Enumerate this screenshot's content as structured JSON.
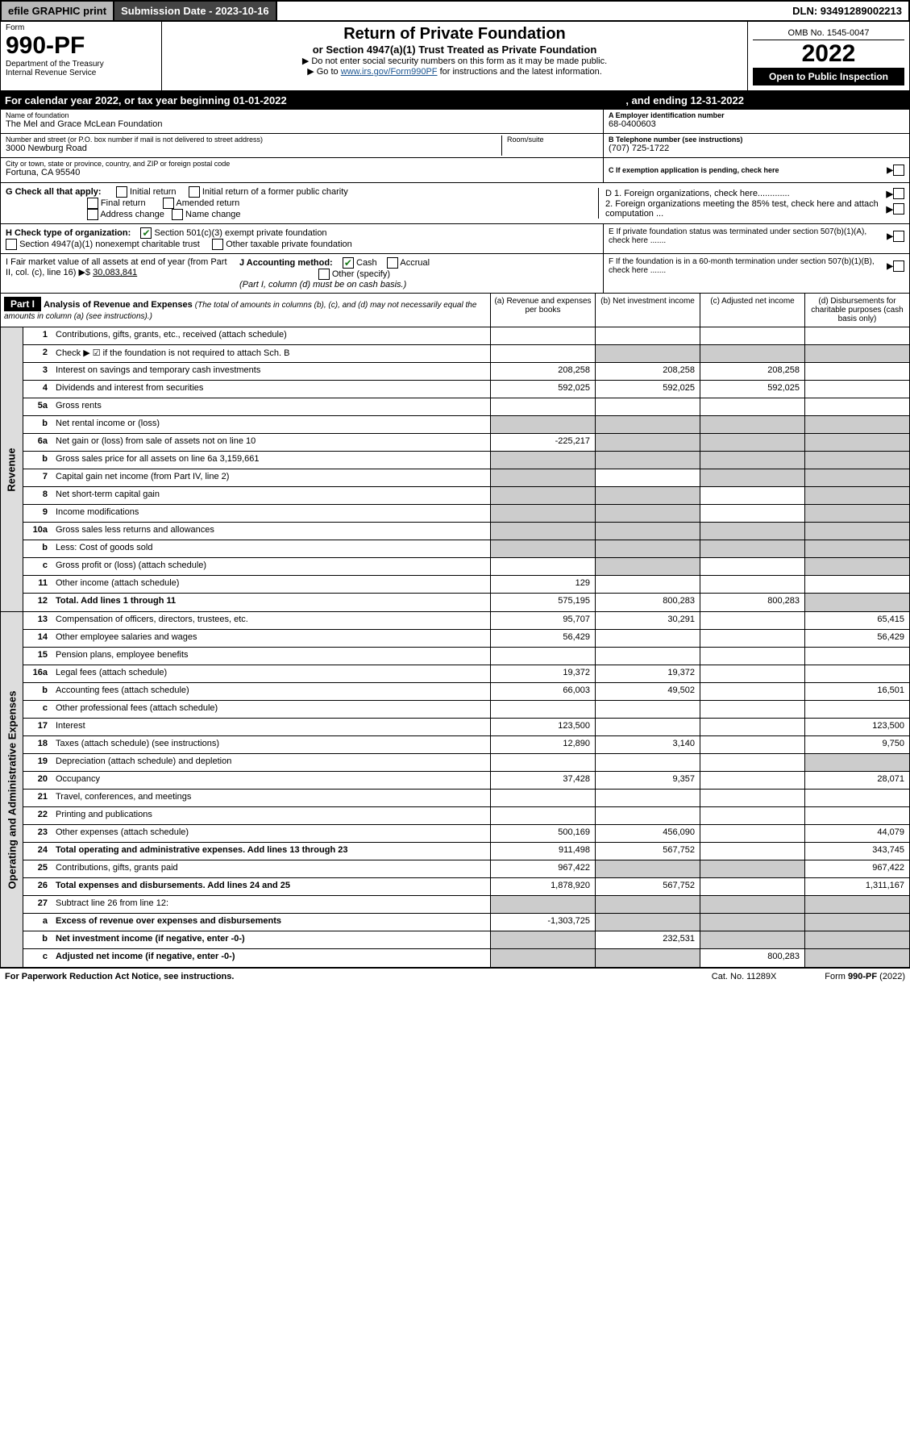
{
  "topbar": {
    "efile": "efile GRAPHIC print",
    "submission": "Submission Date - 2023-10-16",
    "dln": "DLN: 93491289002213"
  },
  "header": {
    "form_label": "Form",
    "form_number": "990-PF",
    "dept1": "Department of the Treasury",
    "dept2": "Internal Revenue Service",
    "title": "Return of Private Foundation",
    "subtitle": "or Section 4947(a)(1) Trust Treated as Private Foundation",
    "instr1": "▶ Do not enter social security numbers on this form as it may be made public.",
    "instr2_pre": "▶ Go to ",
    "instr2_link": "www.irs.gov/Form990PF",
    "instr2_post": " for instructions and the latest information.",
    "omb": "OMB No. 1545-0047",
    "year": "2022",
    "open": "Open to Public Inspection"
  },
  "cal_year": {
    "text": "For calendar year 2022, or tax year beginning 01-01-2022",
    "ending": ", and ending 12-31-2022"
  },
  "info": {
    "name_label": "Name of foundation",
    "name": "The Mel and Grace McLean Foundation",
    "addr_label": "Number and street (or P.O. box number if mail is not delivered to street address)",
    "addr": "3000 Newburg Road",
    "room_label": "Room/suite",
    "city_label": "City or town, state or province, country, and ZIP or foreign postal code",
    "city": "Fortuna, CA  95540",
    "a_label": "A Employer identification number",
    "a_val": "68-0400603",
    "b_label": "B Telephone number (see instructions)",
    "b_val": "(707) 725-1722",
    "c_label": "C If exemption application is pending, check here",
    "d1": "D 1. Foreign organizations, check here.............",
    "d2": "2. Foreign organizations meeting the 85% test, check here and attach computation ...",
    "e": "E  If private foundation status was terminated under section 507(b)(1)(A), check here .......",
    "f": "F  If the foundation is in a 60-month termination under section 507(b)(1)(B), check here ......."
  },
  "g": {
    "label": "G Check all that apply:",
    "o1": "Initial return",
    "o2": "Initial return of a former public charity",
    "o3": "Final return",
    "o4": "Amended return",
    "o5": "Address change",
    "o6": "Name change"
  },
  "h": {
    "label": "H Check type of organization:",
    "o1": "Section 501(c)(3) exempt private foundation",
    "o2": "Section 4947(a)(1) nonexempt charitable trust",
    "o3": "Other taxable private foundation"
  },
  "i": {
    "label": "I Fair market value of all assets at end of year (from Part II, col. (c), line 16) ▶$",
    "val": "30,083,841"
  },
  "j": {
    "label": "J Accounting method:",
    "o1": "Cash",
    "o2": "Accrual",
    "o3": "Other (specify)",
    "note": "(Part I, column (d) must be on cash basis.)"
  },
  "part1": {
    "badge": "Part I",
    "title": "Analysis of Revenue and Expenses",
    "desc": "(The total of amounts in columns (b), (c), and (d) may not necessarily equal the amounts in column (a) (see instructions).)",
    "col_a": "(a)   Revenue and expenses per books",
    "col_b": "(b)   Net investment income",
    "col_c": "(c)   Adjusted net income",
    "col_d": "(d)   Disbursements for charitable purposes (cash basis only)"
  },
  "side_labels": {
    "rev": "Revenue",
    "exp": "Operating and Administrative Expenses"
  },
  "rows": [
    {
      "n": "1",
      "d": "Contributions, gifts, grants, etc., received (attach schedule)",
      "a": "",
      "b": "",
      "c": "",
      "dd": ""
    },
    {
      "n": "2",
      "d": "Check ▶ ☑ if the foundation is not required to attach Sch. B",
      "a": "",
      "b": "",
      "c": "",
      "dd": "",
      "shade_bcd": true
    },
    {
      "n": "3",
      "d": "Interest on savings and temporary cash investments",
      "a": "208,258",
      "b": "208,258",
      "c": "208,258",
      "dd": ""
    },
    {
      "n": "4",
      "d": "Dividends and interest from securities",
      "a": "592,025",
      "b": "592,025",
      "c": "592,025",
      "dd": ""
    },
    {
      "n": "5a",
      "d": "Gross rents",
      "a": "",
      "b": "",
      "c": "",
      "dd": ""
    },
    {
      "n": "b",
      "d": "Net rental income or (loss)",
      "a": "",
      "b": "",
      "c": "",
      "dd": "",
      "shade_all": true
    },
    {
      "n": "6a",
      "d": "Net gain or (loss) from sale of assets not on line 10",
      "a": "-225,217",
      "b": "",
      "c": "",
      "dd": "",
      "shade_bcd": true
    },
    {
      "n": "b",
      "d": "Gross sales price for all assets on line 6a          3,159,661",
      "a": "",
      "b": "",
      "c": "",
      "dd": "",
      "shade_all": true
    },
    {
      "n": "7",
      "d": "Capital gain net income (from Part IV, line 2)",
      "a": "",
      "b": "",
      "c": "",
      "dd": "",
      "shade_a": true,
      "shade_cd": true
    },
    {
      "n": "8",
      "d": "Net short-term capital gain",
      "a": "",
      "b": "",
      "c": "",
      "dd": "",
      "shade_ab": true,
      "shade_d": true
    },
    {
      "n": "9",
      "d": "Income modifications",
      "a": "",
      "b": "",
      "c": "",
      "dd": "",
      "shade_ab": true,
      "shade_d": true
    },
    {
      "n": "10a",
      "d": "Gross sales less returns and allowances",
      "a": "",
      "b": "",
      "c": "",
      "dd": "",
      "shade_all": true
    },
    {
      "n": "b",
      "d": "Less: Cost of goods sold",
      "a": "",
      "b": "",
      "c": "",
      "dd": "",
      "shade_all": true
    },
    {
      "n": "c",
      "d": "Gross profit or (loss) (attach schedule)",
      "a": "",
      "b": "",
      "c": "",
      "dd": "",
      "shade_b": true,
      "shade_d": true
    },
    {
      "n": "11",
      "d": "Other income (attach schedule)",
      "a": "129",
      "b": "",
      "c": "",
      "dd": ""
    },
    {
      "n": "12",
      "d": "Total. Add lines 1 through 11",
      "a": "575,195",
      "b": "800,283",
      "c": "800,283",
      "dd": "",
      "bold": true,
      "shade_d": true
    }
  ],
  "exp_rows": [
    {
      "n": "13",
      "d": "Compensation of officers, directors, trustees, etc.",
      "a": "95,707",
      "b": "30,291",
      "c": "",
      "dd": "65,415"
    },
    {
      "n": "14",
      "d": "Other employee salaries and wages",
      "a": "56,429",
      "b": "",
      "c": "",
      "dd": "56,429"
    },
    {
      "n": "15",
      "d": "Pension plans, employee benefits",
      "a": "",
      "b": "",
      "c": "",
      "dd": ""
    },
    {
      "n": "16a",
      "d": "Legal fees (attach schedule)",
      "a": "19,372",
      "b": "19,372",
      "c": "",
      "dd": ""
    },
    {
      "n": "b",
      "d": "Accounting fees (attach schedule)",
      "a": "66,003",
      "b": "49,502",
      "c": "",
      "dd": "16,501"
    },
    {
      "n": "c",
      "d": "Other professional fees (attach schedule)",
      "a": "",
      "b": "",
      "c": "",
      "dd": ""
    },
    {
      "n": "17",
      "d": "Interest",
      "a": "123,500",
      "b": "",
      "c": "",
      "dd": "123,500"
    },
    {
      "n": "18",
      "d": "Taxes (attach schedule) (see instructions)",
      "a": "12,890",
      "b": "3,140",
      "c": "",
      "dd": "9,750"
    },
    {
      "n": "19",
      "d": "Depreciation (attach schedule) and depletion",
      "a": "",
      "b": "",
      "c": "",
      "dd": "",
      "shade_d": true
    },
    {
      "n": "20",
      "d": "Occupancy",
      "a": "37,428",
      "b": "9,357",
      "c": "",
      "dd": "28,071"
    },
    {
      "n": "21",
      "d": "Travel, conferences, and meetings",
      "a": "",
      "b": "",
      "c": "",
      "dd": ""
    },
    {
      "n": "22",
      "d": "Printing and publications",
      "a": "",
      "b": "",
      "c": "",
      "dd": ""
    },
    {
      "n": "23",
      "d": "Other expenses (attach schedule)",
      "a": "500,169",
      "b": "456,090",
      "c": "",
      "dd": "44,079",
      "icon": true
    },
    {
      "n": "24",
      "d": "Total operating and administrative expenses. Add lines 13 through 23",
      "a": "911,498",
      "b": "567,752",
      "c": "",
      "dd": "343,745",
      "bold": true
    },
    {
      "n": "25",
      "d": "Contributions, gifts, grants paid",
      "a": "967,422",
      "b": "",
      "c": "",
      "dd": "967,422",
      "shade_bc": true
    },
    {
      "n": "26",
      "d": "Total expenses and disbursements. Add lines 24 and 25",
      "a": "1,878,920",
      "b": "567,752",
      "c": "",
      "dd": "1,311,167",
      "bold": true
    },
    {
      "n": "27",
      "d": "Subtract line 26 from line 12:",
      "a": "",
      "b": "",
      "c": "",
      "dd": "",
      "shade_all": true
    },
    {
      "n": "a",
      "d": "Excess of revenue over expenses and disbursements",
      "a": "-1,303,725",
      "b": "",
      "c": "",
      "dd": "",
      "bold": true,
      "shade_bcd": true
    },
    {
      "n": "b",
      "d": "Net investment income (if negative, enter -0-)",
      "a": "",
      "b": "232,531",
      "c": "",
      "dd": "",
      "bold": true,
      "shade_a": true,
      "shade_cd": true
    },
    {
      "n": "c",
      "d": "Adjusted net income (if negative, enter -0-)",
      "a": "",
      "b": "",
      "c": "800,283",
      "dd": "",
      "bold": true,
      "shade_ab": true,
      "shade_d": true
    }
  ],
  "footer": {
    "left": "For Paperwork Reduction Act Notice, see instructions.",
    "mid": "Cat. No. 11289X",
    "right": "Form 990-PF (2022)"
  }
}
